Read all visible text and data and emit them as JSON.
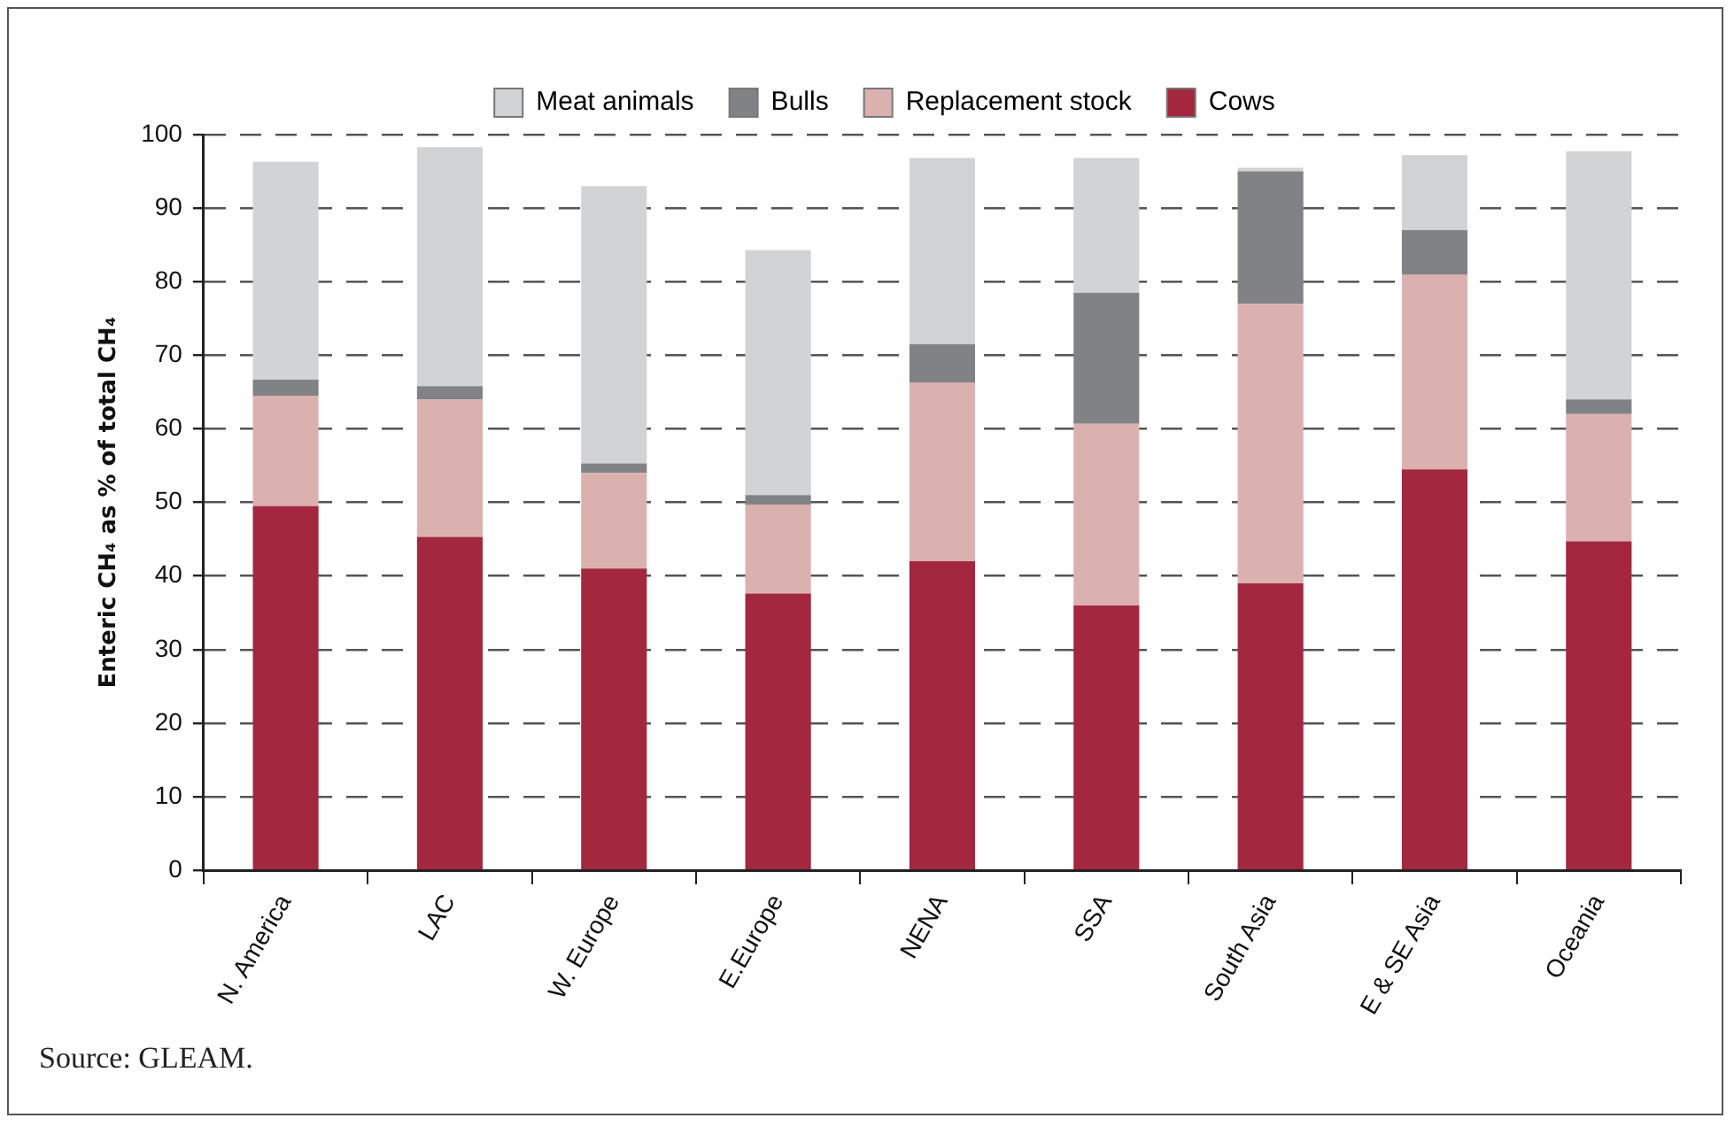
{
  "chart_data": {
    "type": "bar",
    "stacked": true,
    "categories": [
      "N. America",
      "LAC",
      "W. Europe",
      "E.Europe",
      "NENA",
      "SSA",
      "South Asia",
      "E & SE Asia",
      "Oceania"
    ],
    "ylabel": "Enteric CH₄ as % of total CH₄",
    "series": [
      {
        "name": "Cows",
        "color": "#a3273f",
        "values": [
          49.5,
          45.3,
          41,
          37.6,
          42,
          36,
          39,
          54.5,
          44.7
        ]
      },
      {
        "name": "Replacement stock",
        "color": "#dbb1b0",
        "values": [
          15,
          18.7,
          13,
          12.1,
          24.3,
          24.7,
          38,
          26.5,
          17.3
        ]
      },
      {
        "name": "Bulls",
        "color": "#818285",
        "values": [
          2.2,
          1.8,
          1.3,
          1.3,
          5.2,
          17.8,
          18,
          6,
          2
        ]
      },
      {
        "name": "Meat animals",
        "color": "#d2d3d5",
        "values": [
          29.6,
          32.5,
          37.7,
          33.3,
          25.3,
          18.3,
          0.5,
          10.2,
          33.7
        ]
      }
    ],
    "ylim": [
      0,
      100
    ],
    "yticks": [
      0,
      10,
      20,
      30,
      40,
      50,
      60,
      70,
      80,
      90,
      100
    ],
    "grid": "y",
    "legend": "top",
    "annotations": [
      "Source: GLEAM."
    ]
  }
}
